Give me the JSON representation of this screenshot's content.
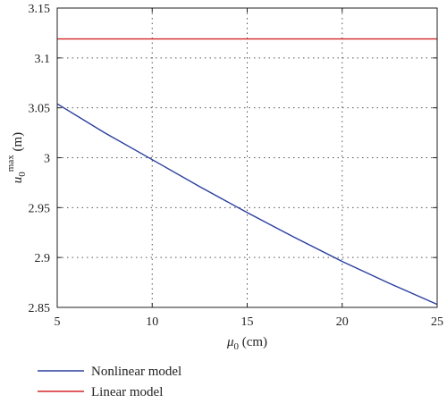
{
  "chart_data": {
    "type": "line",
    "xlabel": {
      "symbol": "μ",
      "subscript": "0",
      "unit": " (cm)"
    },
    "ylabel": {
      "symbol": "u",
      "subscript": "0",
      "superscript": "max",
      "unit": " (m)"
    },
    "xlim": [
      5,
      25
    ],
    "ylim": [
      2.85,
      3.15
    ],
    "xticks": [
      5,
      10,
      15,
      20,
      25
    ],
    "xtick_labels": [
      "5",
      "10",
      "15",
      "20",
      "25"
    ],
    "yticks": [
      2.85,
      2.9,
      2.95,
      3.0,
      3.05,
      3.1,
      3.15
    ],
    "ytick_labels": [
      "2.85",
      "2.9",
      "2.95",
      "3",
      "3.05",
      "3.1",
      "3.15"
    ],
    "grid": true,
    "legend_placement": "bottom-left, outside plot",
    "series": [
      {
        "name": "Nonlinear model",
        "color": "#2a3f9e",
        "x": [
          5,
          7.5,
          10,
          12.5,
          15,
          17.5,
          20,
          22.5,
          25
        ],
        "y": [
          3.054,
          3.025,
          2.998,
          2.971,
          2.945,
          2.92,
          2.896,
          2.874,
          2.853
        ]
      },
      {
        "name": "Linear model",
        "color": "#d62728",
        "x": [
          5,
          25
        ],
        "y": [
          3.119,
          3.119
        ]
      }
    ]
  }
}
